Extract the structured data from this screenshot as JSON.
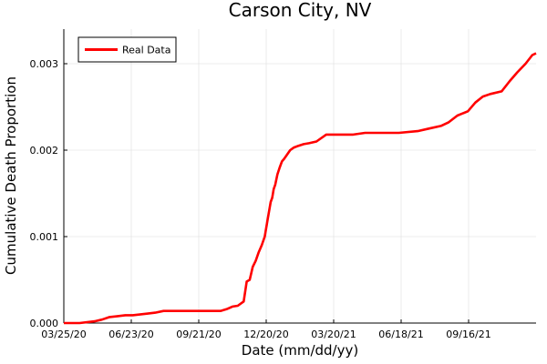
{
  "chart_data": {
    "type": "line",
    "title": "Carson City, NV",
    "xlabel": "Date (mm/dd/yy)",
    "ylabel": "Cumulative Death Proportion",
    "x_tick_labels": [
      "03/25/20",
      "06/23/20",
      "09/21/20",
      "12/20/20",
      "03/20/21",
      "06/18/21",
      "09/16/21"
    ],
    "y_tick_labels": [
      "0.000",
      "0.001",
      "0.002",
      "0.003"
    ],
    "ylim": [
      0,
      0.0034
    ],
    "xlim": [
      "2020-03-25",
      "2021-12-15"
    ],
    "grid": true,
    "legend_position": "top-left",
    "series": [
      {
        "name": "Real Data",
        "color": "#ff0000",
        "x": [
          "2020-03-25",
          "2020-04-15",
          "2020-05-05",
          "2020-05-15",
          "2020-05-25",
          "2020-06-05",
          "2020-06-15",
          "2020-06-25",
          "2020-07-15",
          "2020-07-25",
          "2020-08-05",
          "2020-09-01",
          "2020-10-01",
          "2020-10-20",
          "2020-10-28",
          "2020-11-05",
          "2020-11-12",
          "2020-11-20",
          "2020-11-24",
          "2020-11-28",
          "2020-12-02",
          "2020-12-06",
          "2020-12-10",
          "2020-12-14",
          "2020-12-18",
          "2020-12-22",
          "2020-12-26",
          "2020-12-28",
          "2020-12-30",
          "2021-01-01",
          "2021-01-04",
          "2021-01-07",
          "2021-01-10",
          "2021-01-13",
          "2021-01-17",
          "2021-01-21",
          "2021-01-26",
          "2021-02-01",
          "2021-02-08",
          "2021-02-15",
          "2021-02-25",
          "2021-03-10",
          "2021-03-20",
          "2021-04-15",
          "2021-05-01",
          "2021-05-20",
          "2021-06-15",
          "2021-07-10",
          "2021-07-25",
          "2021-08-10",
          "2021-08-20",
          "2021-09-01",
          "2021-09-15",
          "2021-09-25",
          "2021-10-05",
          "2021-10-15",
          "2021-10-30",
          "2021-11-10",
          "2021-11-20",
          "2021-12-01",
          "2021-12-10",
          "2021-12-15"
        ],
        "values": [
          0,
          0,
          2e-05,
          4e-05,
          7e-05,
          8e-05,
          9e-05,
          9e-05,
          0.00011,
          0.00012,
          0.00014,
          0.00014,
          0.00014,
          0.00014,
          0.00016,
          0.00019,
          0.0002,
          0.00025,
          0.00048,
          0.0005,
          0.00065,
          0.00072,
          0.00082,
          0.0009,
          0.001,
          0.0012,
          0.0014,
          0.00145,
          0.00155,
          0.0016,
          0.00172,
          0.0018,
          0.00187,
          0.0019,
          0.00195,
          0.002,
          0.00203,
          0.00205,
          0.00207,
          0.00208,
          0.0021,
          0.00218,
          0.00218,
          0.00218,
          0.0022,
          0.0022,
          0.0022,
          0.00222,
          0.00225,
          0.00228,
          0.00232,
          0.0024,
          0.00245,
          0.00255,
          0.00262,
          0.00265,
          0.00268,
          0.0028,
          0.0029,
          0.003,
          0.0031,
          0.00312
        ]
      }
    ]
  }
}
